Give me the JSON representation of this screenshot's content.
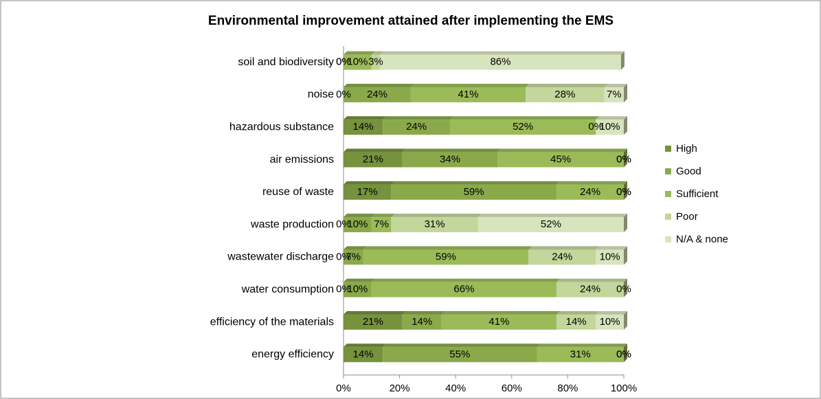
{
  "chart_data": {
    "type": "bar",
    "orientation": "horizontal",
    "stacked": true,
    "title": "Environmental improvement attained after implementing the EMS",
    "categories": [
      "soil and biodiversity",
      "noise",
      "hazardous substance",
      "air emissions",
      "reuse of waste",
      "waste production",
      "wastewater discharge",
      "water consumption",
      "efficiency of the materials",
      "energy efficiency"
    ],
    "series": [
      {
        "name": "High",
        "color": "#76923c",
        "values": [
          0,
          0,
          14,
          21,
          17,
          0,
          0,
          0,
          21,
          14
        ],
        "value_labels": [
          "0%",
          "0%",
          "14%",
          "21%",
          "17%",
          "0%",
          "0%",
          "0%",
          "21%",
          "14%"
        ]
      },
      {
        "name": "Good",
        "color": "#8aa94b",
        "values": [
          0,
          24,
          24,
          34,
          59,
          10,
          7,
          10,
          14,
          55
        ],
        "value_labels": [
          "0%",
          "24%",
          "24%",
          "34%",
          "59%",
          "10%",
          "7%",
          "10%",
          "14%",
          "55%"
        ]
      },
      {
        "name": "Sufficient",
        "color": "#9bbb59",
        "values": [
          10,
          41,
          52,
          45,
          24,
          7,
          59,
          66,
          41,
          31
        ],
        "value_labels": [
          "10%",
          "41%",
          "52%",
          "45%",
          "24%",
          "7%",
          "59%",
          "66%",
          "41%",
          "31%"
        ]
      },
      {
        "name": "Poor",
        "color": "#c3d69b",
        "values": [
          3,
          28,
          0,
          0,
          0,
          31,
          24,
          24,
          14,
          0
        ],
        "value_labels": [
          "3%",
          "28%",
          "0%",
          "0%",
          "0%",
          "31%",
          "24%",
          "24%",
          "14%",
          "0%"
        ]
      },
      {
        "name": "N/A & none",
        "color": "#d7e4bd",
        "values": [
          86,
          7,
          10,
          0,
          0,
          52,
          10,
          0,
          10,
          0
        ],
        "value_labels": [
          "86%",
          "7%",
          "10%",
          "0%",
          "0%",
          "52%",
          "10%",
          "0%",
          "10%",
          "0%"
        ]
      }
    ],
    "xlim": [
      0,
      100
    ],
    "xticks": [
      {
        "value": 0,
        "label": "0%"
      },
      {
        "value": 20,
        "label": "20%"
      },
      {
        "value": 40,
        "label": "40%"
      },
      {
        "value": 60,
        "label": "60%"
      },
      {
        "value": 80,
        "label": "80%"
      },
      {
        "value": 100,
        "label": "100%"
      }
    ],
    "legend": "right"
  }
}
